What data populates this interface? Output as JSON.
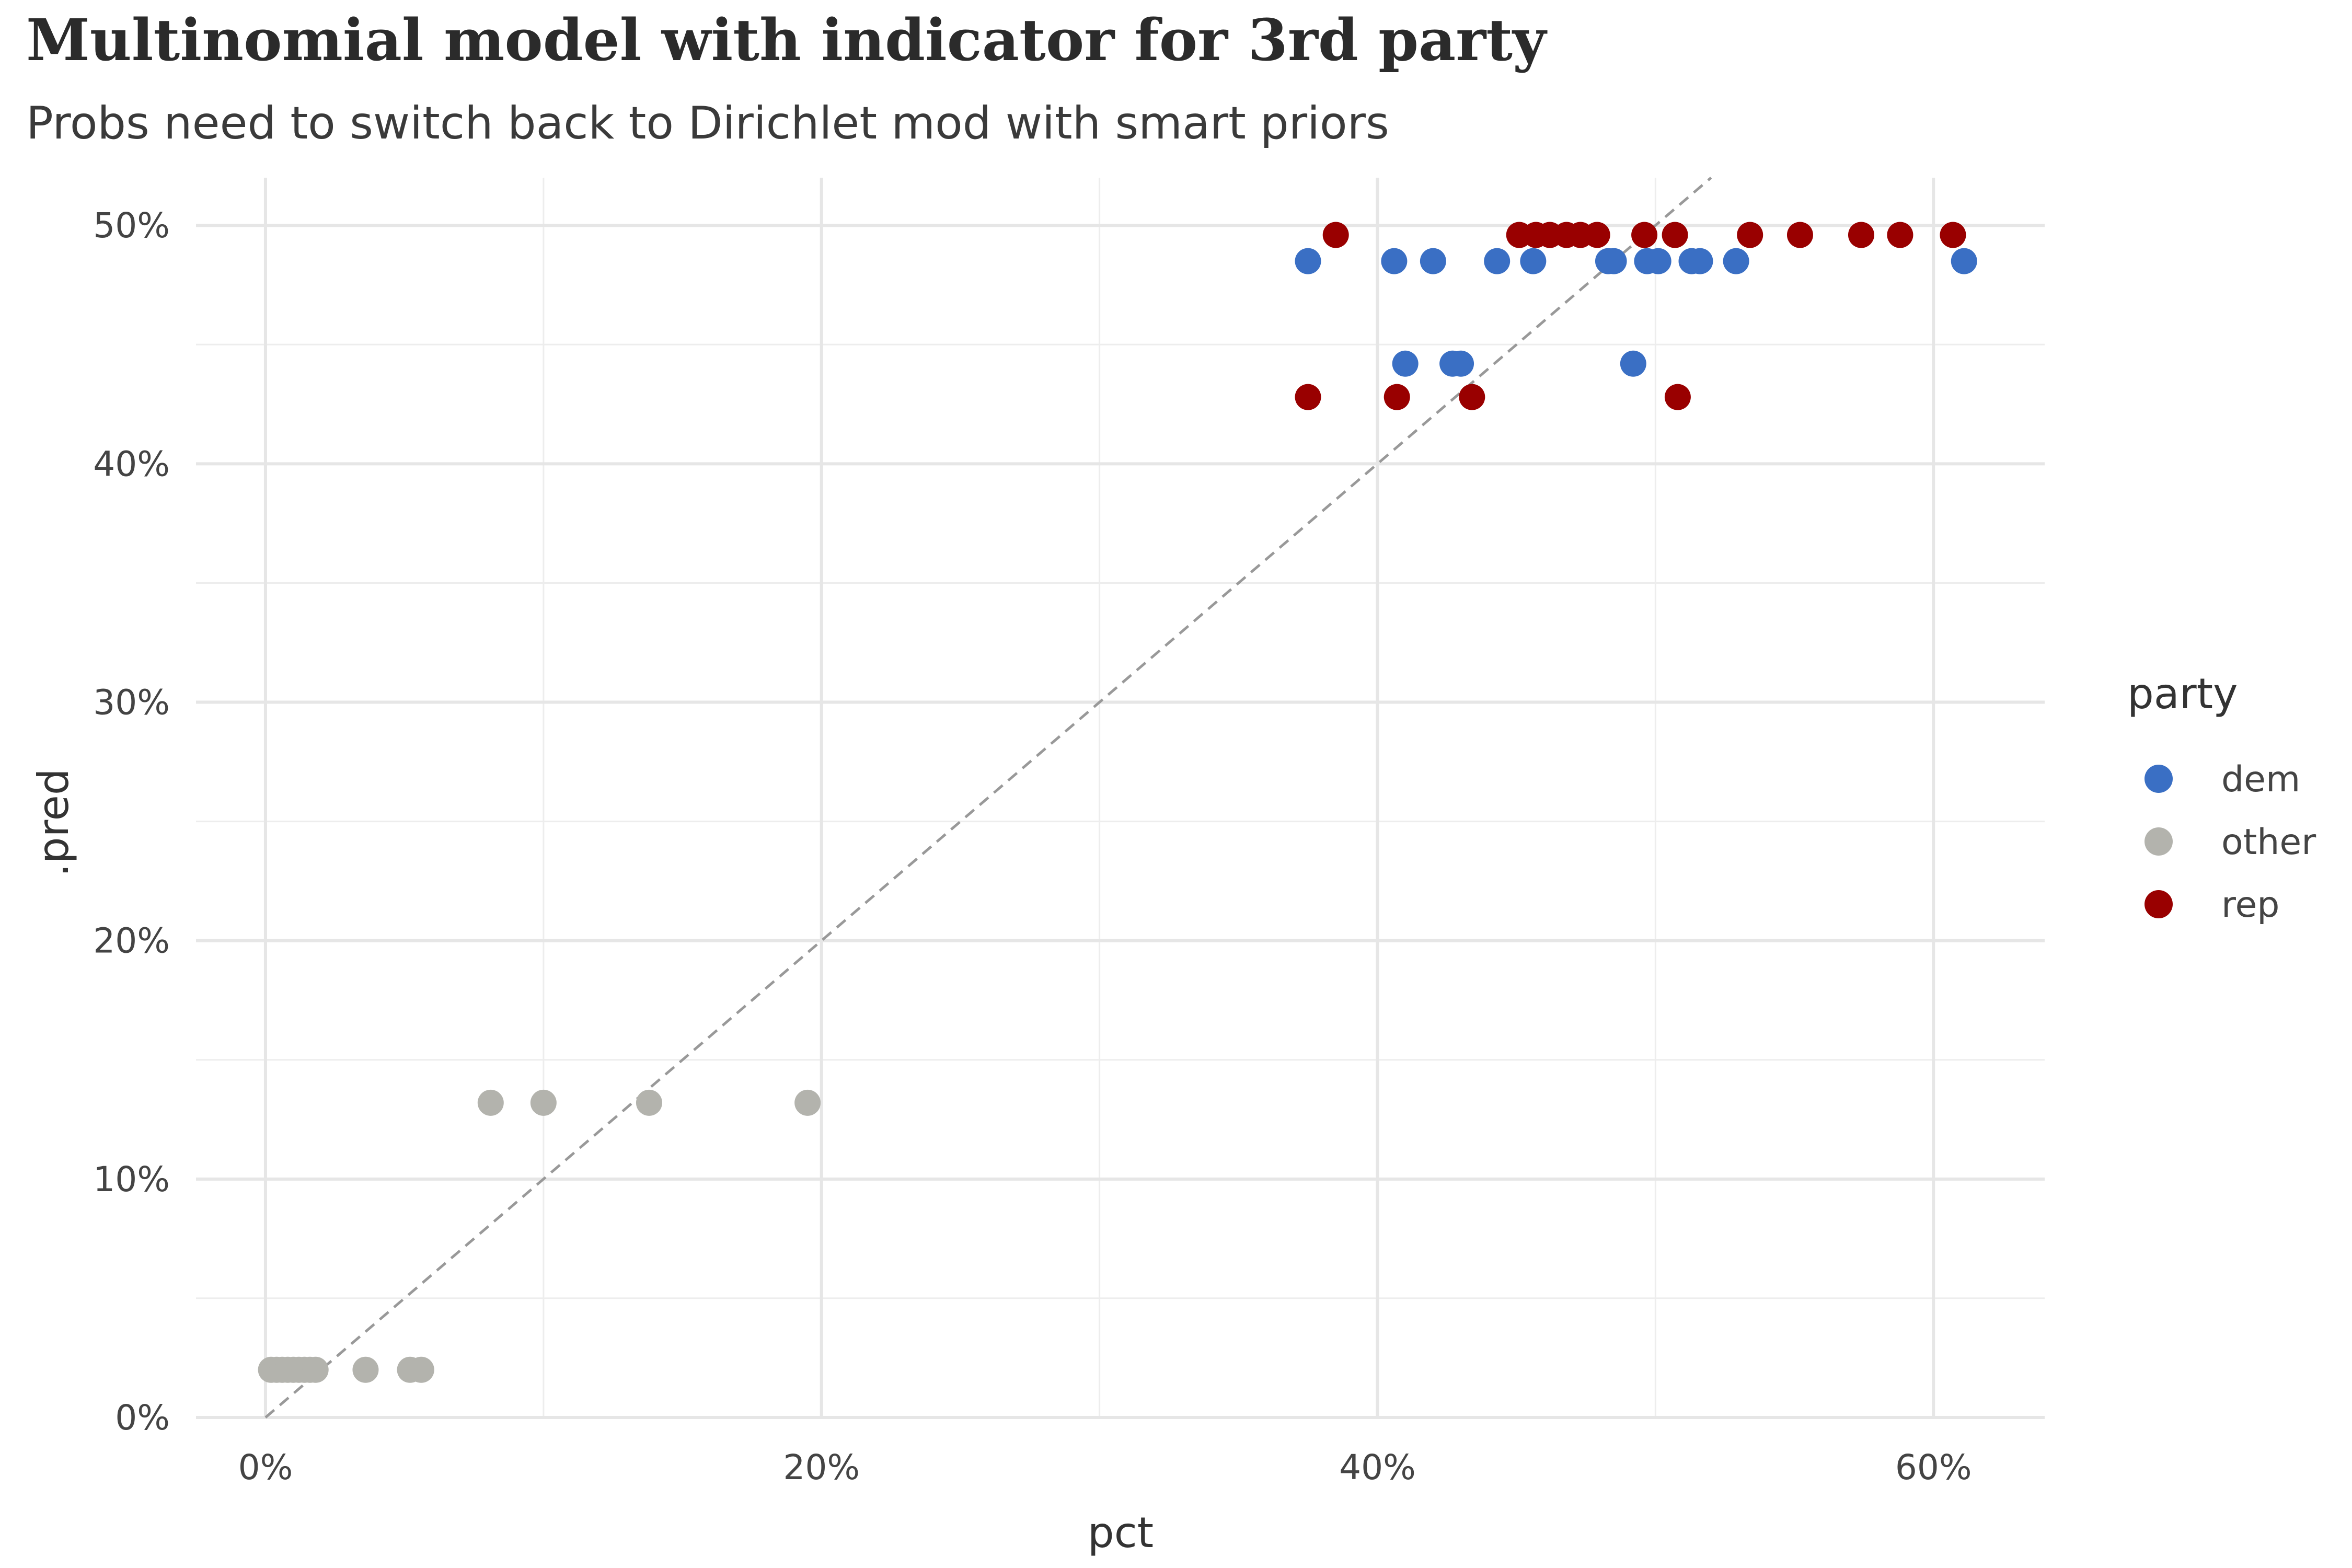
{
  "chart_data": {
    "type": "scatter",
    "title": "Multinomial model with indicator for 3rd party",
    "subtitle": "Probs need to switch back to Dirichlet mod with smart priors",
    "xlabel": "pct",
    "ylabel": ".pred",
    "x_ticks": [
      "0%",
      "20%",
      "40%",
      "60%"
    ],
    "y_ticks": [
      "0%",
      "10%",
      "20%",
      "30%",
      "40%",
      "50%"
    ],
    "xlim": [
      -0.025,
      0.64
    ],
    "ylim": [
      0,
      0.52
    ],
    "grid": true,
    "legend": {
      "title": "party",
      "position": "right"
    },
    "reference_line": {
      "style": "dashed",
      "slope": 1,
      "intercept": 0,
      "color": "#999999"
    },
    "series": [
      {
        "name": "dem",
        "color": "#3a6fc4",
        "points": [
          [
            0.375,
            0.485
          ],
          [
            0.406,
            0.485
          ],
          [
            0.42,
            0.485
          ],
          [
            0.443,
            0.485
          ],
          [
            0.456,
            0.485
          ],
          [
            0.483,
            0.485
          ],
          [
            0.485,
            0.485
          ],
          [
            0.497,
            0.485
          ],
          [
            0.501,
            0.485
          ],
          [
            0.513,
            0.485
          ],
          [
            0.516,
            0.485
          ],
          [
            0.529,
            0.485
          ],
          [
            0.611,
            0.485
          ],
          [
            0.41,
            0.442
          ],
          [
            0.427,
            0.442
          ],
          [
            0.43,
            0.442
          ],
          [
            0.492,
            0.442
          ]
        ]
      },
      {
        "name": "other",
        "color": "#b3b3ad",
        "points": [
          [
            0.002,
            0.02
          ],
          [
            0.004,
            0.02
          ],
          [
            0.006,
            0.02
          ],
          [
            0.008,
            0.02
          ],
          [
            0.01,
            0.02
          ],
          [
            0.012,
            0.02
          ],
          [
            0.014,
            0.02
          ],
          [
            0.016,
            0.02
          ],
          [
            0.018,
            0.02
          ],
          [
            0.036,
            0.02
          ],
          [
            0.052,
            0.02
          ],
          [
            0.056,
            0.02
          ],
          [
            0.081,
            0.132
          ],
          [
            0.1,
            0.132
          ],
          [
            0.138,
            0.132
          ],
          [
            0.195,
            0.132
          ]
        ]
      },
      {
        "name": "rep",
        "color": "#990000",
        "points": [
          [
            0.385,
            0.496
          ],
          [
            0.451,
            0.496
          ],
          [
            0.457,
            0.496
          ],
          [
            0.462,
            0.496
          ],
          [
            0.468,
            0.496
          ],
          [
            0.473,
            0.496
          ],
          [
            0.479,
            0.496
          ],
          [
            0.496,
            0.496
          ],
          [
            0.507,
            0.496
          ],
          [
            0.534,
            0.496
          ],
          [
            0.552,
            0.496
          ],
          [
            0.574,
            0.496
          ],
          [
            0.588,
            0.496
          ],
          [
            0.607,
            0.496
          ],
          [
            0.375,
            0.428
          ],
          [
            0.407,
            0.428
          ],
          [
            0.434,
            0.428
          ],
          [
            0.508,
            0.428
          ]
        ]
      }
    ]
  }
}
